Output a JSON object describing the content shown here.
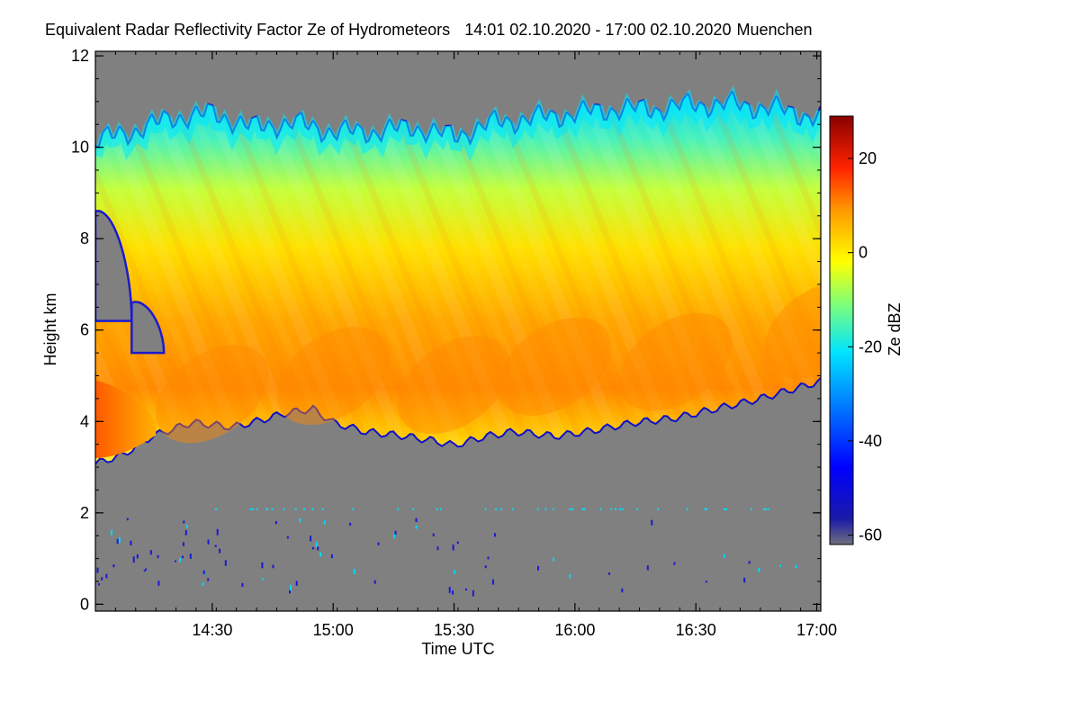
{
  "chart_data": {
    "type": "heatmap",
    "title": "Equivalent Radar Reflectivity Factor Ze of Hydrometeors",
    "time_range": "14:01 02.10.2020 - 17:00 02.10.2020",
    "location": "Muenchen",
    "xlabel": "Time UTC",
    "ylabel": "Height km",
    "colorbar_label": "Ze dBZ",
    "xlim_minutes_utc": [
      841,
      1021
    ],
    "ylim_km": [
      -0.15,
      12.1
    ],
    "x_ticks": [
      {
        "minute": 870,
        "label": "14:30"
      },
      {
        "minute": 900,
        "label": "15:00"
      },
      {
        "minute": 930,
        "label": "15:30"
      },
      {
        "minute": 960,
        "label": "16:00"
      },
      {
        "minute": 990,
        "label": "16:30"
      },
      {
        "minute": 1020,
        "label": "17:00"
      }
    ],
    "y_ticks": [
      0,
      2,
      4,
      6,
      8,
      10,
      12
    ],
    "colorbar_range_dbz": [
      -62,
      29
    ],
    "colorbar_ticks": [
      20,
      0,
      -20,
      -40,
      -60
    ],
    "background_color": "#808080",
    "echo_top_km": [
      {
        "minute": 841,
        "value": 10.1
      },
      {
        "minute": 850,
        "value": 10.3
      },
      {
        "minute": 860,
        "value": 10.6
      },
      {
        "minute": 870,
        "value": 10.7
      },
      {
        "minute": 880,
        "value": 10.4
      },
      {
        "minute": 890,
        "value": 10.5
      },
      {
        "minute": 900,
        "value": 10.3
      },
      {
        "minute": 910,
        "value": 10.3
      },
      {
        "minute": 920,
        "value": 10.4
      },
      {
        "minute": 930,
        "value": 10.2
      },
      {
        "minute": 940,
        "value": 10.5
      },
      {
        "minute": 950,
        "value": 10.6
      },
      {
        "minute": 960,
        "value": 10.7
      },
      {
        "minute": 970,
        "value": 10.8
      },
      {
        "minute": 980,
        "value": 10.8
      },
      {
        "minute": 990,
        "value": 10.9
      },
      {
        "minute": 1000,
        "value": 10.9
      },
      {
        "minute": 1010,
        "value": 10.8
      },
      {
        "minute": 1021,
        "value": 10.6
      }
    ],
    "echo_base_km": [
      {
        "minute": 841,
        "value": 3.1
      },
      {
        "minute": 848,
        "value": 3.3
      },
      {
        "minute": 855,
        "value": 3.7
      },
      {
        "minute": 865,
        "value": 4.0
      },
      {
        "minute": 875,
        "value": 3.9
      },
      {
        "minute": 880,
        "value": 4.0
      },
      {
        "minute": 888,
        "value": 4.2
      },
      {
        "minute": 895,
        "value": 4.3
      },
      {
        "minute": 900,
        "value": 4.0
      },
      {
        "minute": 908,
        "value": 3.8
      },
      {
        "minute": 918,
        "value": 3.7
      },
      {
        "minute": 925,
        "value": 3.6
      },
      {
        "minute": 930,
        "value": 3.5
      },
      {
        "minute": 938,
        "value": 3.7
      },
      {
        "minute": 945,
        "value": 3.8
      },
      {
        "minute": 955,
        "value": 3.7
      },
      {
        "minute": 963,
        "value": 3.8
      },
      {
        "minute": 975,
        "value": 4.0
      },
      {
        "minute": 985,
        "value": 4.1
      },
      {
        "minute": 995,
        "value": 4.3
      },
      {
        "minute": 1005,
        "value": 4.5
      },
      {
        "minute": 1013,
        "value": 4.7
      },
      {
        "minute": 1021,
        "value": 4.9
      }
    ],
    "max_reflectivity_layer_km": [
      {
        "minute": 841,
        "value": 4.0
      },
      {
        "minute": 870,
        "value": 4.6
      },
      {
        "minute": 900,
        "value": 5.0
      },
      {
        "minute": 930,
        "value": 4.8
      },
      {
        "minute": 955,
        "value": 5.2
      },
      {
        "minute": 985,
        "value": 5.3
      },
      {
        "minute": 1021,
        "value": 6.0
      }
    ],
    "clear_air_gaps": [
      {
        "minute_start": 841,
        "minute_end": 850,
        "height_low_km": 6.2,
        "height_high_km": 8.6
      },
      {
        "minute_start": 850,
        "minute_end": 858,
        "height_low_km": 5.5,
        "height_high_km": 6.6
      }
    ],
    "low_level_clutter_km": [
      0.3,
      1.9
    ],
    "annotation_strip_km": 2.1
  }
}
